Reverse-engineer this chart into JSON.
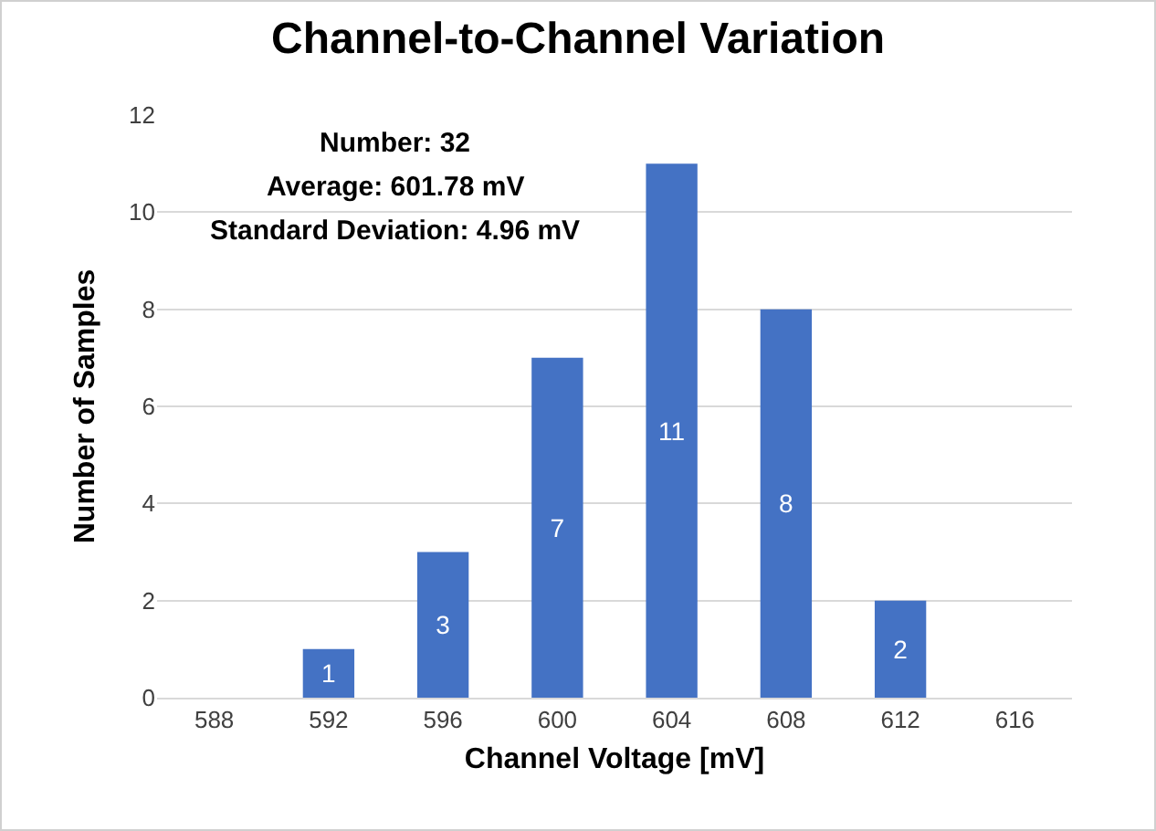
{
  "chart_data": {
    "type": "bar",
    "title": "Channel-to-Channel Variation",
    "xlabel": "Channel Voltage [mV]",
    "ylabel": "Number of Samples",
    "categories": [
      "588",
      "592",
      "596",
      "600",
      "604",
      "608",
      "612",
      "616"
    ],
    "values": [
      0,
      1,
      3,
      7,
      11,
      8,
      2,
      0
    ],
    "value_labels": [
      null,
      "1",
      "3",
      "7",
      "11",
      "8",
      "2",
      null
    ],
    "color": "#4472c4",
    "ylim": [
      0,
      12
    ],
    "yticks": [
      0,
      2,
      4,
      6,
      8,
      10,
      12
    ],
    "grid": "y",
    "annotations": [
      "Number: 32",
      "Average: 601.78 mV",
      "Standard Deviation: 4.96 mV"
    ]
  }
}
